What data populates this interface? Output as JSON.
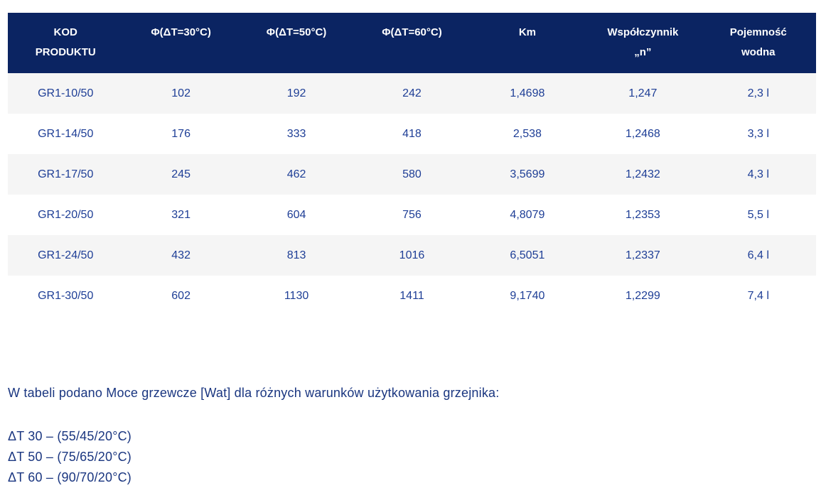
{
  "colors": {
    "header_bg": "#0b2462",
    "header_text": "#ffffff",
    "body_text": "#1e3e96",
    "notes_text": "#1a3680",
    "row_alt_bg": "#f5f5f5",
    "row_bg": "#ffffff"
  },
  "table": {
    "columns": [
      {
        "id": "kod-produktu",
        "lines": [
          "KOD",
          "PRODUKTU"
        ]
      },
      {
        "id": "phi-dt30",
        "lines": [
          "Φ(ΔT=30°C)"
        ]
      },
      {
        "id": "phi-dt50",
        "lines": [
          "Φ(ΔT=50°C)"
        ]
      },
      {
        "id": "phi-dt60",
        "lines": [
          "Φ(ΔT=60°C)"
        ]
      },
      {
        "id": "km",
        "lines": [
          "Km"
        ]
      },
      {
        "id": "wspolczynnik-n",
        "lines": [
          "Współczynnik",
          "„n”"
        ]
      },
      {
        "id": "pojemnosc-wodna",
        "lines": [
          "Pojemność",
          "wodna"
        ]
      }
    ],
    "rows": [
      [
        "GR1-10/50",
        "102",
        "192",
        "242",
        "1,4698",
        "1,247",
        "2,3 l"
      ],
      [
        "GR1-14/50",
        "176",
        "333",
        "418",
        "2,538",
        "1,2468",
        "3,3 l"
      ],
      [
        "GR1-17/50",
        "245",
        "462",
        "580",
        "3,5699",
        "1,2432",
        "4,3 l"
      ],
      [
        "GR1-20/50",
        "321",
        "604",
        "756",
        "4,8079",
        "1,2353",
        "5,5 l"
      ],
      [
        "GR1-24/50",
        "432",
        "813",
        "1016",
        "6,5051",
        "1,2337",
        "6,4 l"
      ],
      [
        "GR1-30/50",
        "602",
        "1130",
        "1411",
        "9,1740",
        "1,2299",
        "7,4 l"
      ]
    ]
  },
  "notes": {
    "intro": "W tabeli podano Moce grzewcze [Wat] dla różnych warunków użytkowania grzejnika:",
    "delta_lines": [
      "ΔT 30 – (55/45/20°C)",
      "ΔT 50 – (75/65/20°C)",
      "ΔT 60 – (90/70/20°C)"
    ]
  }
}
